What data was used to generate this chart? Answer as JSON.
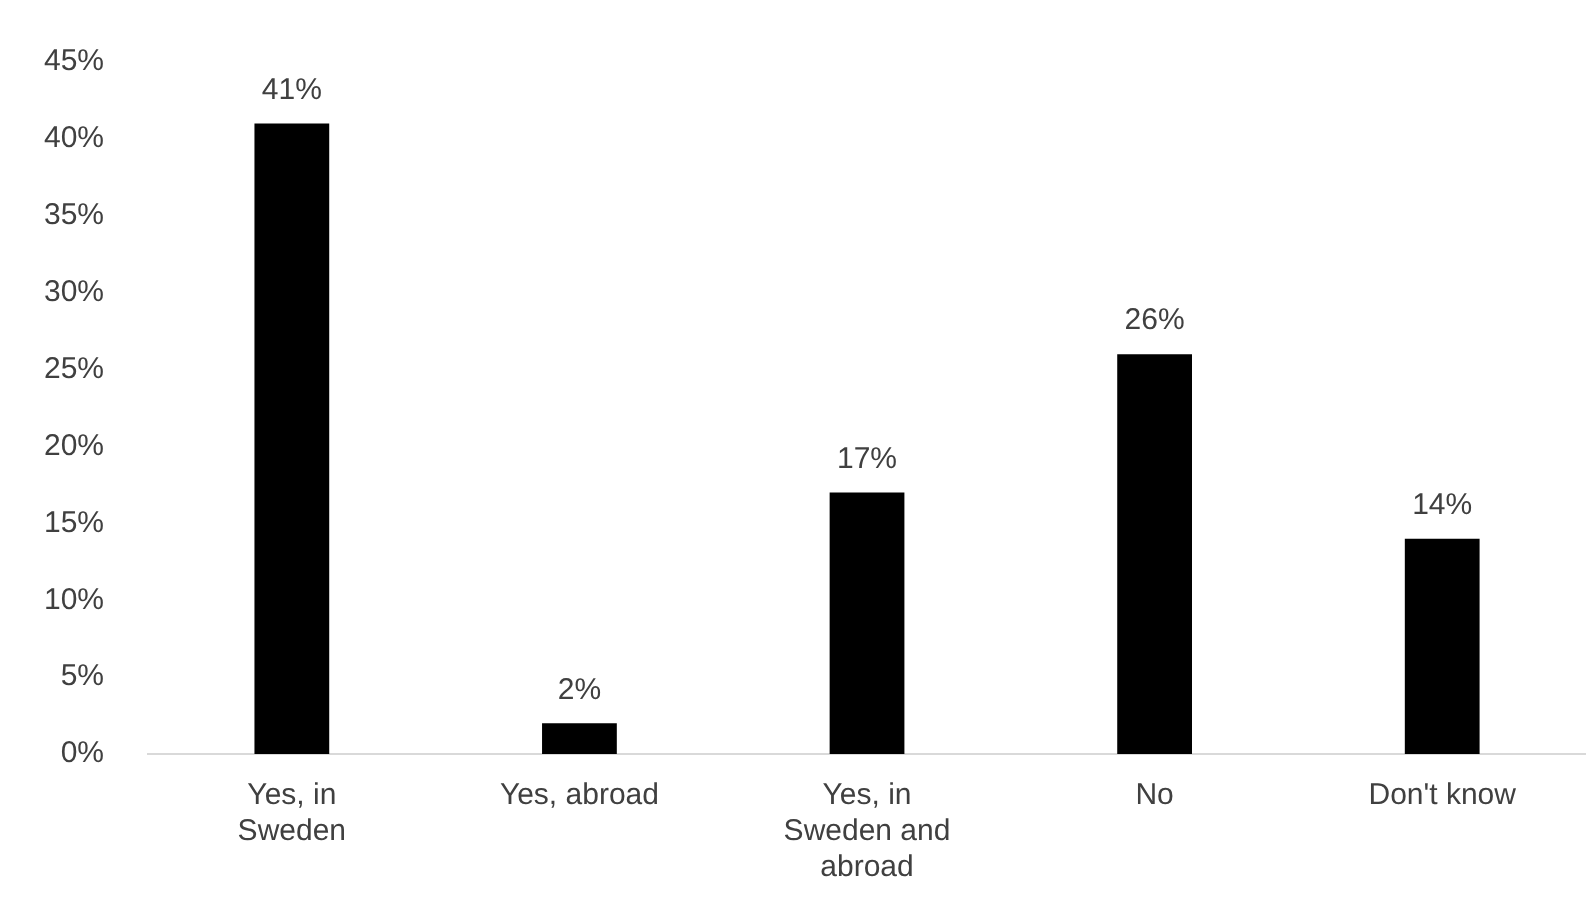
{
  "chart_data": {
    "type": "bar",
    "categories": [
      "Yes, in Sweden",
      "Yes, abroad",
      "Yes, in Sweden and abroad",
      "No",
      "Don't know"
    ],
    "values": [
      41,
      2,
      17,
      26,
      14
    ],
    "value_labels": [
      "41%",
      "2%",
      "17%",
      "26%",
      "14%"
    ],
    "color": "#000000",
    "ylim": [
      0,
      45
    ],
    "yticks": [
      {
        "value": 0,
        "label": "0%"
      },
      {
        "value": 5,
        "label": "5%"
      },
      {
        "value": 10,
        "label": "10%"
      },
      {
        "value": 15,
        "label": "15%"
      },
      {
        "value": 20,
        "label": "20%"
      },
      {
        "value": 25,
        "label": "25%"
      },
      {
        "value": 30,
        "label": "30%"
      },
      {
        "value": 35,
        "label": "35%"
      },
      {
        "value": 40,
        "label": "40%"
      },
      {
        "value": 45,
        "label": "45%"
      }
    ],
    "grid": false,
    "legend": false
  }
}
